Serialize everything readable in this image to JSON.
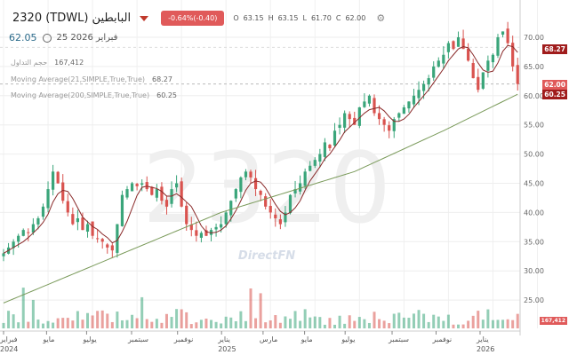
{
  "header": {
    "title": "2320 (TDWL) البابطين",
    "change": "-0.64%(-0.40)",
    "ohlc": [
      {
        "k": "O",
        "v": "63.15"
      },
      {
        "k": "H",
        "v": "63.15"
      },
      {
        "k": "L",
        "v": "61.70"
      },
      {
        "k": "C",
        "v": "62.00"
      }
    ],
    "last": "62.05",
    "date": "25 2026 فبراير"
  },
  "legend": {
    "volume_label": "حجم التداول",
    "volume_value": "167,412",
    "ma21_label": "Moving Average(21,SIMPLE,True,True)",
    "ma21_value": "68.27",
    "ma200_label": "Moving Average(200,SIMPLE,True,True)",
    "ma200_value": "60.25"
  },
  "watermark": {
    "symbol": "2320",
    "brand": "DirectFN"
  },
  "price_labels": {
    "ma21": "68.27",
    "close": "62.00",
    "ma200": "60.25",
    "volume": "167,412"
  },
  "colors": {
    "up": "#3aa57a",
    "down": "#d9534f",
    "ma21": "#8a2a2a",
    "ma200": "#7a9a5a"
  },
  "chart_data": {
    "type": "candlestick",
    "y_ticks": [
      "70.00",
      "65.00",
      "60.00",
      "55.00",
      "50.00",
      "45.00",
      "40.00",
      "35.00",
      "30.00",
      "25.00"
    ],
    "ylim": [
      20.5,
      73
    ],
    "x_labels": [
      {
        "m": "فبراير",
        "y": "2024",
        "w": 0
      },
      {
        "m": "مايو",
        "w": 8.7
      },
      {
        "m": "يوليو",
        "w": 16.8
      },
      {
        "m": "سبتمبر",
        "w": 25.9
      },
      {
        "m": "نوفمبر",
        "w": 35.2
      },
      {
        "m": "يناير",
        "y": "2025",
        "w": 44.1
      },
      {
        "m": "مارس",
        "w": 52.5
      },
      {
        "m": "مايو",
        "w": 60.9
      },
      {
        "m": "يوليو",
        "w": 69.1
      },
      {
        "m": "سبتمبر",
        "w": 78.6
      },
      {
        "m": "نوفمبر",
        "w": 87.5
      },
      {
        "m": "يناير",
        "y": "2026",
        "w": 96.4
      }
    ],
    "closes": [
      33,
      34,
      35,
      36,
      37,
      36.5,
      38,
      39,
      41,
      44,
      47,
      45,
      42,
      40,
      38,
      39,
      37,
      38,
      36,
      35.5,
      35,
      34,
      33.5,
      38,
      43,
      44,
      45,
      44.5,
      45,
      44,
      43,
      44,
      42,
      41,
      44,
      45,
      41,
      38,
      37,
      36,
      36.5,
      36,
      37,
      37.5,
      38,
      40,
      42,
      44,
      46,
      47,
      46,
      44,
      43,
      41,
      40,
      39,
      38,
      40,
      43,
      44,
      45,
      47,
      48,
      49,
      50,
      52,
      51,
      54,
      55,
      57,
      56,
      55,
      58,
      59,
      60,
      57,
      56,
      55,
      54,
      56,
      57,
      58,
      59,
      60,
      61,
      62,
      63,
      65,
      66,
      67,
      69,
      68,
      70,
      68,
      66,
      63,
      61,
      64,
      66,
      67,
      70,
      71,
      69,
      65,
      62
    ],
    "ma200_anchors": [
      [
        0,
        24.5
      ],
      [
        44,
        40
      ],
      [
        71,
        47
      ],
      [
        89,
        54
      ],
      [
        104,
        60.25
      ]
    ]
  }
}
